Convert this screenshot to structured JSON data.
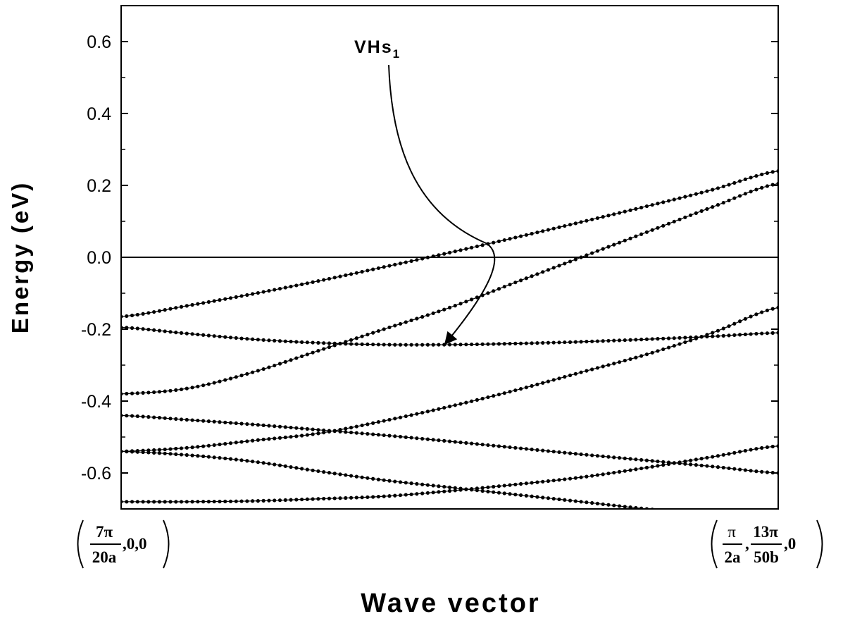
{
  "chart_data": {
    "type": "line",
    "xlabel": "Wave vector",
    "ylabel": "Energy (eV)",
    "xlim": [
      0,
      1
    ],
    "ylim": [
      -0.7,
      0.7
    ],
    "y_ticks": [
      0.6,
      0.4,
      0.2,
      0.0,
      -0.2,
      -0.4,
      -0.6
    ],
    "y_tick_labels": [
      "0.6",
      "0.4",
      "0.2",
      "0.0",
      "-0.2",
      "-0.4",
      "-0.6"
    ],
    "x_tick_labels": {
      "left": {
        "num": "7π",
        "den": "20a",
        "tail": ",0,0"
      },
      "right": {
        "num1": "π",
        "den1": "2a",
        "num2": "13π",
        "den2": "50b",
        "tail": ",0"
      }
    },
    "reference_line": {
      "y": 0.0
    },
    "annotation": {
      "text": "VHs",
      "subscript": "1",
      "target": {
        "x": 0.5,
        "y": -0.24
      }
    },
    "grid": false,
    "series": [
      {
        "points": [
          [
            0,
            -0.165
          ],
          [
            0.1,
            -0.135
          ],
          [
            0.2,
            -0.102
          ],
          [
            0.3,
            -0.066
          ],
          [
            0.4,
            -0.027
          ],
          [
            0.5,
            0.013
          ],
          [
            0.6,
            0.055
          ],
          [
            0.7,
            0.098
          ],
          [
            0.8,
            0.142
          ],
          [
            0.9,
            0.188
          ],
          [
            1.0,
            0.24
          ]
        ]
      },
      {
        "points": [
          [
            0,
            -0.195
          ],
          [
            0.1,
            -0.212
          ],
          [
            0.2,
            -0.228
          ],
          [
            0.3,
            -0.238
          ],
          [
            0.4,
            -0.243
          ],
          [
            0.5,
            -0.243
          ],
          [
            0.6,
            -0.24
          ],
          [
            0.7,
            -0.235
          ],
          [
            0.8,
            -0.228
          ],
          [
            0.9,
            -0.22
          ],
          [
            1.0,
            -0.21
          ]
        ]
      },
      {
        "points": [
          [
            0,
            -0.38
          ],
          [
            0.1,
            -0.365
          ],
          [
            0.2,
            -0.32
          ],
          [
            0.3,
            -0.26
          ],
          [
            0.4,
            -0.2
          ],
          [
            0.5,
            -0.14
          ],
          [
            0.6,
            -0.07
          ],
          [
            0.7,
            0.0
          ],
          [
            0.8,
            0.07
          ],
          [
            0.9,
            0.14
          ],
          [
            1.0,
            0.205
          ]
        ]
      },
      {
        "points": [
          [
            0,
            -0.54
          ],
          [
            0.1,
            -0.53
          ],
          [
            0.2,
            -0.51
          ],
          [
            0.3,
            -0.49
          ],
          [
            0.4,
            -0.455
          ],
          [
            0.5,
            -0.415
          ],
          [
            0.6,
            -0.37
          ],
          [
            0.7,
            -0.32
          ],
          [
            0.8,
            -0.27
          ],
          [
            0.9,
            -0.21
          ],
          [
            1.0,
            -0.14
          ]
        ]
      },
      {
        "points": [
          [
            0,
            -0.44
          ],
          [
            0.1,
            -0.452
          ],
          [
            0.2,
            -0.465
          ],
          [
            0.3,
            -0.48
          ],
          [
            0.4,
            -0.495
          ],
          [
            0.5,
            -0.512
          ],
          [
            0.6,
            -0.53
          ],
          [
            0.7,
            -0.548
          ],
          [
            0.8,
            -0.565
          ],
          [
            0.9,
            -0.582
          ],
          [
            1.0,
            -0.6
          ]
        ]
      },
      {
        "points": [
          [
            0,
            -0.54
          ],
          [
            0.1,
            -0.55
          ],
          [
            0.2,
            -0.568
          ],
          [
            0.3,
            -0.595
          ],
          [
            0.4,
            -0.62
          ],
          [
            0.5,
            -0.64
          ],
          [
            0.6,
            -0.66
          ],
          [
            0.7,
            -0.68
          ],
          [
            0.8,
            -0.7
          ],
          [
            0.9,
            -0.715
          ],
          [
            1.0,
            -0.73
          ]
        ]
      },
      {
        "points": [
          [
            0,
            -0.68
          ],
          [
            0.1,
            -0.68
          ],
          [
            0.2,
            -0.678
          ],
          [
            0.3,
            -0.672
          ],
          [
            0.4,
            -0.665
          ],
          [
            0.5,
            -0.65
          ],
          [
            0.6,
            -0.632
          ],
          [
            0.7,
            -0.612
          ],
          [
            0.8,
            -0.585
          ],
          [
            0.9,
            -0.555
          ],
          [
            1.0,
            -0.525
          ]
        ]
      }
    ]
  }
}
